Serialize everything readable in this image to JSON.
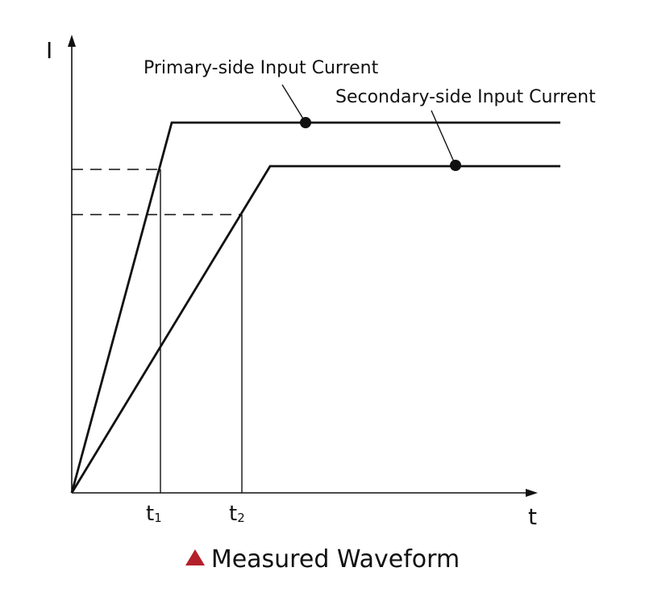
{
  "diagram": {
    "y_axis_label": "I",
    "x_axis_label": "t",
    "tick_labels": {
      "t1": "t",
      "t1_sub": "1",
      "t2": "t",
      "t2_sub": "2"
    },
    "callouts": {
      "primary": "Primary-side Input Current",
      "secondary": "Secondary-side Input Current"
    }
  },
  "caption": {
    "text": "Measured Waveform",
    "marker_color": "#b3202a",
    "marker_shape": "triangle-up"
  },
  "colors": {
    "line": "#111111",
    "background": "#ffffff"
  }
}
